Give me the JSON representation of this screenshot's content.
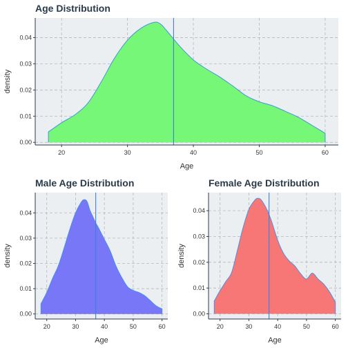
{
  "chart_data": [
    {
      "type": "area",
      "title": "Age Distribution",
      "xlabel": "Age",
      "ylabel": "density",
      "xlim": [
        16,
        62
      ],
      "ylim": [
        -0.001,
        0.0475
      ],
      "xticks": [
        "20",
        "30",
        "40",
        "50",
        "60"
      ],
      "yticks": [
        "0.00",
        "0.01",
        "0.02",
        "0.03",
        "0.04"
      ],
      "fill": "#77f777",
      "line": "#4a90e2",
      "vline_x": 37,
      "grid": true,
      "legend": "none",
      "x": [
        18,
        20,
        22,
        24,
        26,
        28,
        30,
        32,
        34,
        35,
        36,
        38,
        40,
        42,
        44,
        46,
        48,
        50,
        52,
        54,
        56,
        58,
        60
      ],
      "y": [
        0.004,
        0.0075,
        0.0105,
        0.015,
        0.023,
        0.032,
        0.039,
        0.0435,
        0.0458,
        0.0452,
        0.0425,
        0.0365,
        0.0315,
        0.028,
        0.025,
        0.0215,
        0.0178,
        0.0155,
        0.014,
        0.0118,
        0.0095,
        0.0065,
        0.0035
      ]
    },
    {
      "type": "area",
      "title": "Male Age Distribution",
      "xlabel": "Age",
      "ylabel": "density",
      "xlim": [
        16,
        62
      ],
      "ylim": [
        -0.002,
        0.048
      ],
      "xticks": [
        "20",
        "30",
        "40",
        "50",
        "60"
      ],
      "yticks": [
        "0.00",
        "0.01",
        "0.02",
        "0.03",
        "0.04"
      ],
      "fill": "#7777f7",
      "line": "#4a90e2",
      "vline_x": 37,
      "grid": true,
      "legend": "none",
      "x": [
        18,
        20,
        22,
        24,
        26,
        28,
        30,
        32,
        33,
        34,
        35,
        36,
        37,
        38,
        40,
        42,
        44,
        46,
        48,
        50,
        52,
        54,
        56,
        58,
        60
      ],
      "y": [
        0.004,
        0.0085,
        0.014,
        0.019,
        0.026,
        0.0335,
        0.04,
        0.0443,
        0.0452,
        0.0445,
        0.041,
        0.0385,
        0.036,
        0.034,
        0.0295,
        0.025,
        0.019,
        0.0145,
        0.0108,
        0.0093,
        0.0085,
        0.0072,
        0.0052,
        0.0032,
        0.002
      ]
    },
    {
      "type": "area",
      "title": "Female Age Distribution",
      "xlabel": "Age",
      "ylabel": "density",
      "xlim": [
        16,
        62
      ],
      "ylim": [
        -0.002,
        0.047
      ],
      "xticks": [
        "20",
        "30",
        "40",
        "50",
        "60"
      ],
      "yticks": [
        "0.00",
        "0.01",
        "0.02",
        "0.03",
        "0.04"
      ],
      "fill": "#f77777",
      "line": "#4a90e2",
      "vline_x": 37,
      "grid": true,
      "legend": "none",
      "x": [
        18,
        20,
        22,
        24,
        26,
        28,
        30,
        32,
        33,
        34,
        35,
        36,
        37,
        38,
        40,
        42,
        44,
        46,
        48,
        50,
        52,
        54,
        56,
        58,
        60
      ],
      "y": [
        0.005,
        0.009,
        0.0125,
        0.016,
        0.0245,
        0.0335,
        0.0405,
        0.044,
        0.0448,
        0.0445,
        0.043,
        0.041,
        0.0385,
        0.0355,
        0.0285,
        0.0235,
        0.0205,
        0.0185,
        0.0155,
        0.0135,
        0.0158,
        0.0135,
        0.0115,
        0.0085,
        0.0045
      ]
    }
  ]
}
